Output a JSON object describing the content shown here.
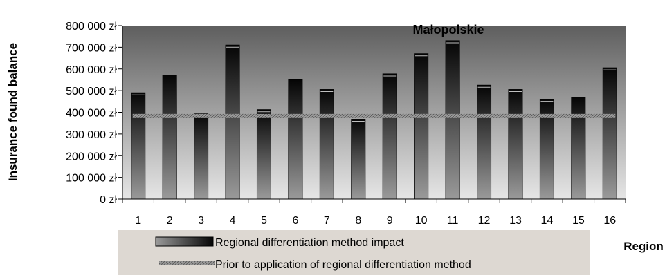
{
  "chart_data": {
    "type": "bar",
    "title": "Małopolskie",
    "xlabel": "Region",
    "ylabel": "Insurance found balance",
    "ylim": [
      0,
      800000
    ],
    "y_ticks": [
      "0 zł",
      "100 000 zł",
      "200 000 zł",
      "300 000 zł",
      "400 000 zł",
      "500 000 zł",
      "600 000 zł",
      "700 000 zł",
      "800 000 zł"
    ],
    "categories": [
      "1",
      "2",
      "3",
      "4",
      "5",
      "6",
      "7",
      "8",
      "9",
      "10",
      "11",
      "12",
      "13",
      "14",
      "15",
      "16"
    ],
    "series": [
      {
        "name": "Regional differentiation method impact",
        "kind": "bar",
        "values": [
          490000,
          572000,
          393000,
          710000,
          412000,
          550000,
          505000,
          368000,
          577000,
          670000,
          730000,
          525000,
          505000,
          460000,
          470000,
          605000
        ]
      },
      {
        "name": "Prior to application of regional differentiation method",
        "kind": "line",
        "values": [
          383000,
          383000,
          383000,
          383000,
          383000,
          383000,
          383000,
          383000,
          383000,
          383000,
          383000,
          383000,
          383000,
          383000,
          383000,
          383000
        ]
      }
    ],
    "grid": false,
    "legend_position": "bottom",
    "colors": {
      "plot_top": "#5e5e5e",
      "plot_bottom": "#e6e6e6",
      "bar_dark": "#050505",
      "bar_light": "#9a9a9a",
      "line": "#8a8a8a",
      "legend_bg": "#ddd8d2"
    }
  }
}
